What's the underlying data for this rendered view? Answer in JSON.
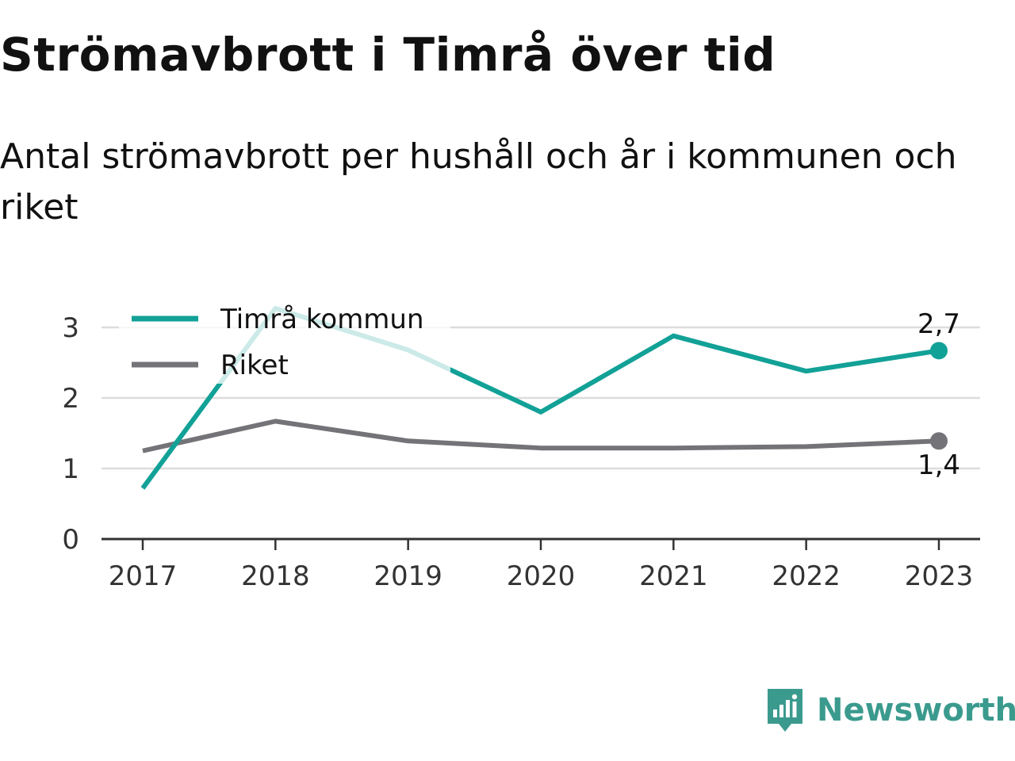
{
  "colors": {
    "primary": "#12a197",
    "secondary": "#737378",
    "grid": "#dcdcdc",
    "axis": "#333333",
    "brand": "#3b9a8e"
  },
  "chart_data": {
    "type": "line",
    "title": "Strömavbrott i Timrå över tid",
    "subtitle": "Antal strömavbrott per hushåll och år i kommunen och riket",
    "categories": [
      "2017",
      "2018",
      "2019",
      "2020",
      "2021",
      "2022",
      "2023"
    ],
    "ylim": [
      0,
      3.3
    ],
    "yticks": [
      "0",
      "1",
      "2",
      "3"
    ],
    "grid": true,
    "legend_position": "top-left",
    "series": [
      {
        "name": "Timrå kommun",
        "values": [
          0.72,
          3.27,
          2.68,
          1.8,
          2.88,
          2.38,
          2.67
        ],
        "end_label": "2,7"
      },
      {
        "name": "Riket",
        "values": [
          1.25,
          1.67,
          1.39,
          1.29,
          1.29,
          1.31,
          1.39
        ],
        "end_label": "1,4"
      }
    ]
  },
  "brand": {
    "name": "Newsworthy",
    "icon": "newsworthy-logo-icon"
  }
}
